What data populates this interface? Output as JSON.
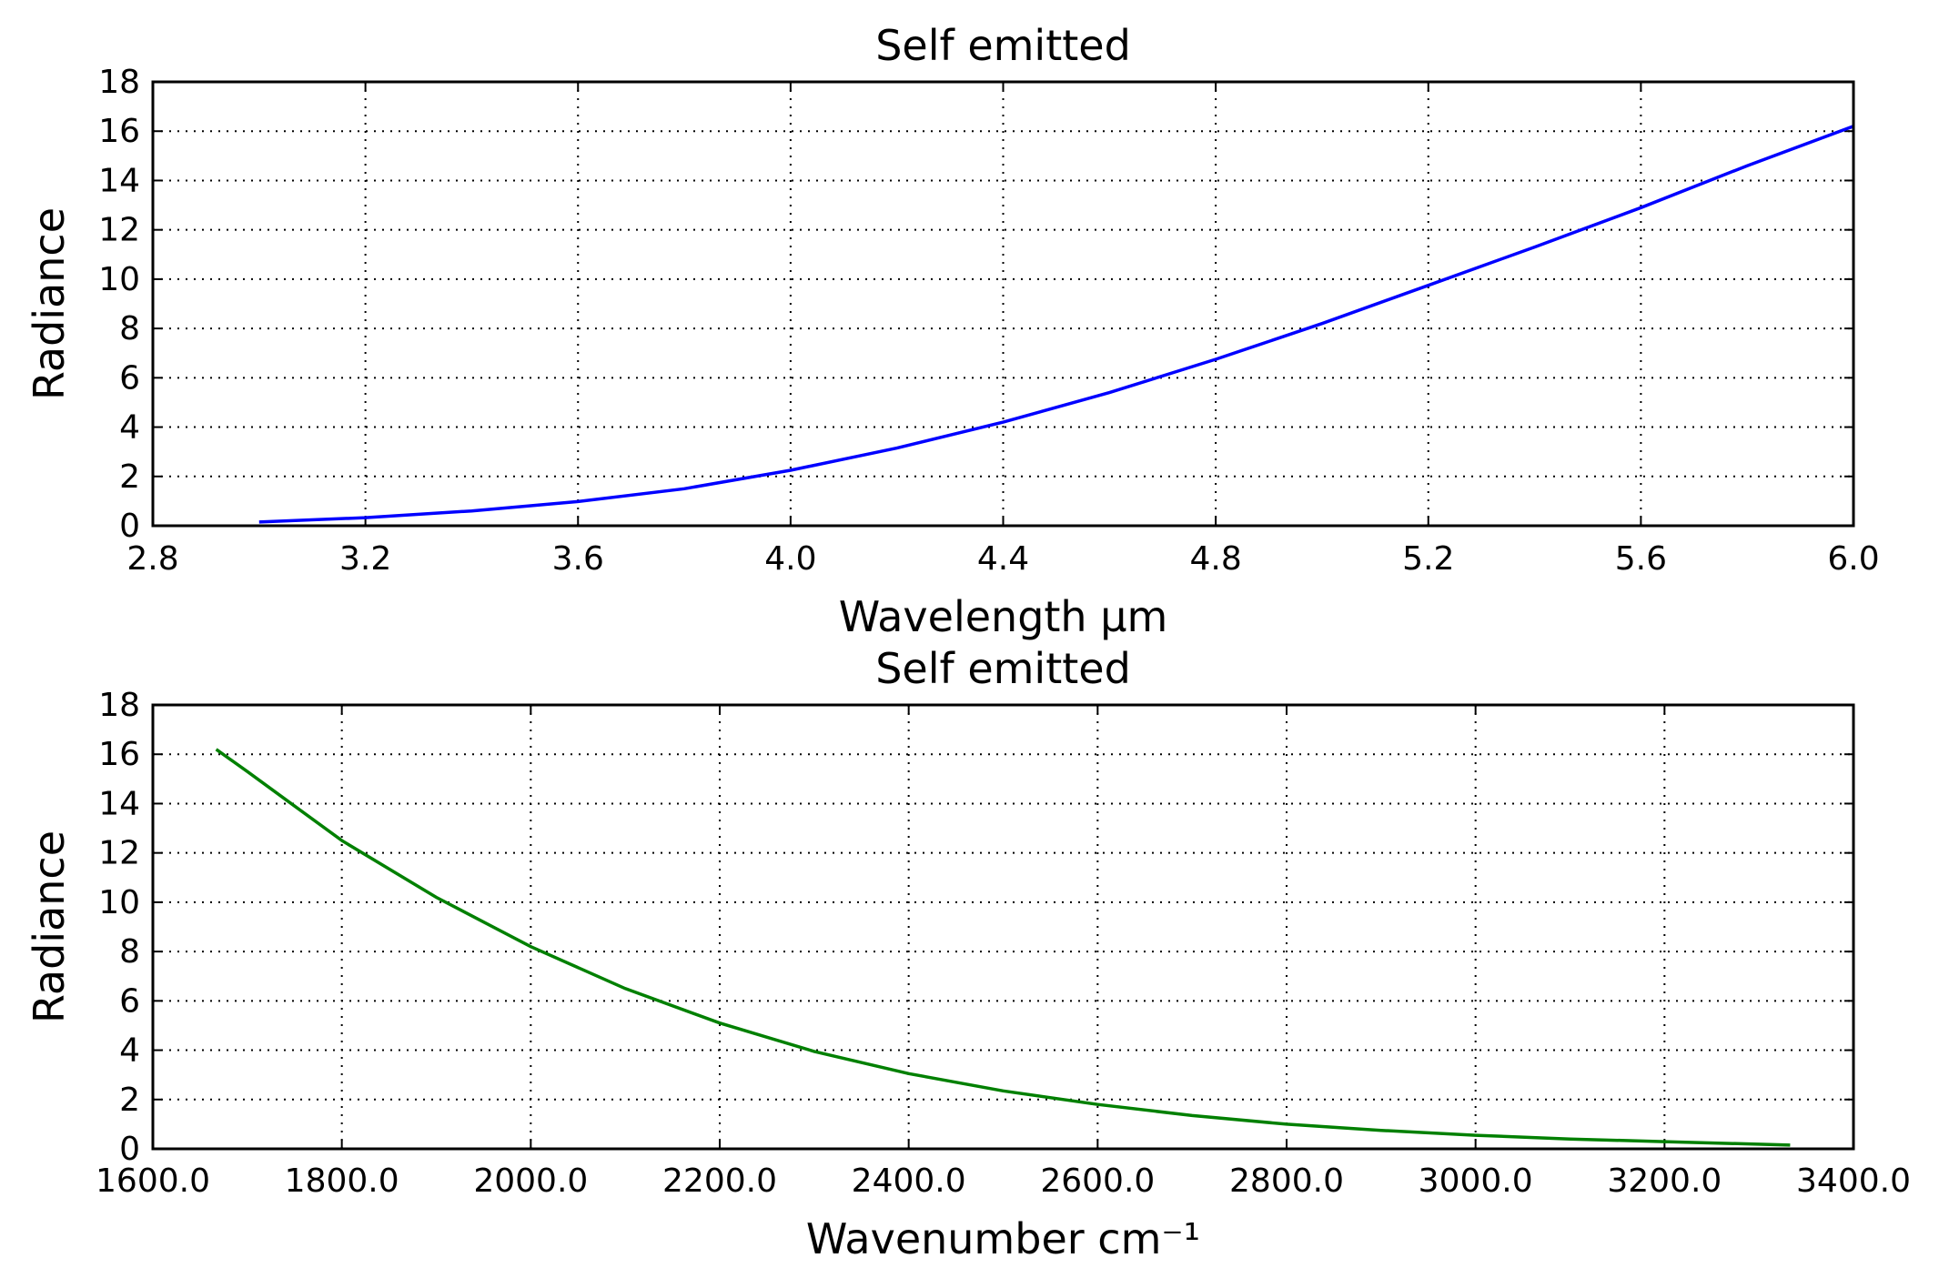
{
  "chart_data": [
    {
      "type": "line",
      "title": "Self emitted",
      "xlabel": "Wavelength μm",
      "ylabel": "Radiance",
      "xlim": [
        2.8,
        6.0
      ],
      "ylim": [
        0,
        18
      ],
      "xticks": [
        "2.8",
        "3.2",
        "3.6",
        "4.0",
        "4.4",
        "4.8",
        "5.2",
        "5.6",
        "6.0"
      ],
      "yticks": [
        "0",
        "2",
        "4",
        "6",
        "8",
        "10",
        "12",
        "14",
        "16",
        "18"
      ],
      "grid": true,
      "series": [
        {
          "color": "#0000ff",
          "x": [
            3.0,
            3.2,
            3.4,
            3.6,
            3.8,
            4.0,
            4.2,
            4.4,
            4.6,
            4.8,
            5.0,
            5.2,
            5.4,
            5.6,
            5.8,
            6.0
          ],
          "y": [
            0.15,
            0.33,
            0.6,
            0.98,
            1.5,
            2.25,
            3.15,
            4.2,
            5.4,
            6.75,
            8.2,
            9.75,
            11.3,
            12.9,
            14.6,
            16.2
          ]
        }
      ]
    },
    {
      "type": "line",
      "title": "Self emitted",
      "xlabel": "Wavenumber cm⁻¹",
      "ylabel": "Radiance",
      "xlim": [
        1600,
        3400
      ],
      "ylim": [
        0,
        18
      ],
      "xticks": [
        "1600.0",
        "1800.0",
        "2000.0",
        "2200.0",
        "2400.0",
        "2600.0",
        "2800.0",
        "3000.0",
        "3200.0",
        "3400.0"
      ],
      "yticks": [
        "0",
        "2",
        "4",
        "6",
        "8",
        "10",
        "12",
        "14",
        "16",
        "18"
      ],
      "grid": true,
      "series": [
        {
          "color": "#008000",
          "x": [
            1667,
            1700,
            1750,
            1800,
            1900,
            2000,
            2100,
            2200,
            2300,
            2400,
            2500,
            2600,
            2700,
            2800,
            2900,
            3000,
            3100,
            3200,
            3333
          ],
          "y": [
            16.2,
            15.3,
            13.9,
            12.5,
            10.2,
            8.2,
            6.5,
            5.1,
            3.95,
            3.05,
            2.35,
            1.8,
            1.35,
            1.0,
            0.75,
            0.55,
            0.4,
            0.29,
            0.15
          ]
        }
      ]
    }
  ]
}
